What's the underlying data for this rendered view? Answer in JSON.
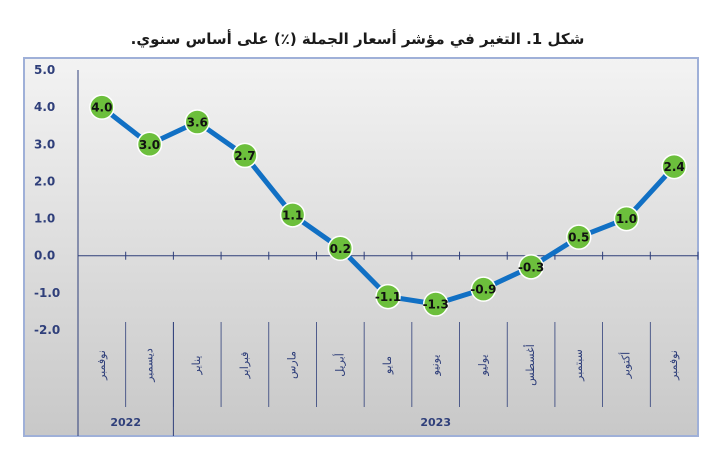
{
  "chart_data": {
    "type": "line",
    "title": "شكل 1. التغير في مؤشر أسعار الجملة (٪) على أساس سنوي.",
    "categories": [
      "نوفمبر",
      "ديسمبر",
      "يناير",
      "فبراير",
      "مارس",
      "أبريل",
      "مايو",
      "يونيو",
      "يوليو",
      "أغسطس",
      "سبتمبر",
      "أكتوبر",
      "نوفمبر"
    ],
    "years": [
      {
        "label": "2022",
        "span": [
          0,
          1
        ]
      },
      {
        "label": "2023",
        "span": [
          2,
          12
        ]
      }
    ],
    "series": [
      {
        "values": [
          4.0,
          3.0,
          3.6,
          2.7,
          1.1,
          0.2,
          -1.1,
          -1.3,
          -0.9,
          -0.3,
          0.5,
          1.0,
          2.4
        ],
        "labels": [
          "4.0",
          "3.0",
          "3.6",
          "2.7",
          "1.1",
          "0.2",
          "-1.1",
          "-1.3",
          "-0.9",
          "-0.3",
          "0.5",
          "1.0",
          "2.4"
        ]
      }
    ],
    "ylim": [
      -2.0,
      5.0
    ],
    "yticks": [
      5.0,
      4.0,
      3.0,
      2.0,
      1.0,
      0.0,
      -1.0,
      -2.0
    ],
    "ytick_labels": [
      "5.0",
      "4.0",
      "3.0",
      "2.0",
      "1.0",
      "0.0",
      "-1.0",
      "-2.0"
    ],
    "xlabel": "",
    "ylabel": "",
    "grid": false,
    "legend": "none",
    "colors": {
      "line": "#1170c4",
      "marker": "#6cbf3c",
      "marker_border": "#ffffff",
      "frame": "#9fb0d8",
      "axis": "#2f3f7a",
      "background_start": "#f3f3f3",
      "background_end": "#c8c8c8"
    }
  }
}
